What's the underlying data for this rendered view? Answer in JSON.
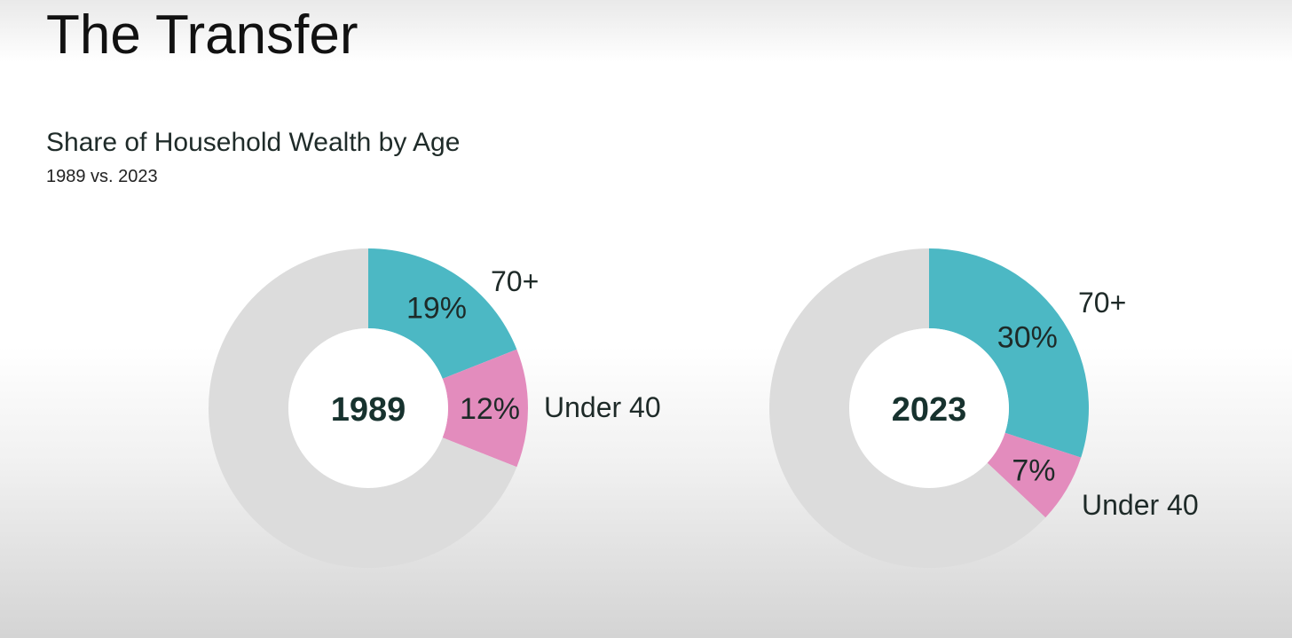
{
  "slide": {
    "title": "The Transfer"
  },
  "chart_data": {
    "type": "pie",
    "title": "Share of Household Wealth by Age",
    "subtitle": "1989 vs. 2023",
    "colors": {
      "70+": "#4cb8c4",
      "Under 40": "#e38cbd",
      "remainder": "#dcdcdc"
    },
    "charts": [
      {
        "label": "1989",
        "slices": [
          {
            "category": "70+",
            "value": 19,
            "value_label": "19%"
          },
          {
            "category": "Under 40",
            "value": 12,
            "value_label": "12%"
          },
          {
            "category": "remainder",
            "value": 69,
            "value_label": ""
          }
        ]
      },
      {
        "label": "2023",
        "slices": [
          {
            "category": "70+",
            "value": 30,
            "value_label": "30%"
          },
          {
            "category": "Under 40",
            "value": 7,
            "value_label": "7%"
          },
          {
            "category": "remainder",
            "value": 63,
            "value_label": ""
          }
        ]
      }
    ]
  }
}
